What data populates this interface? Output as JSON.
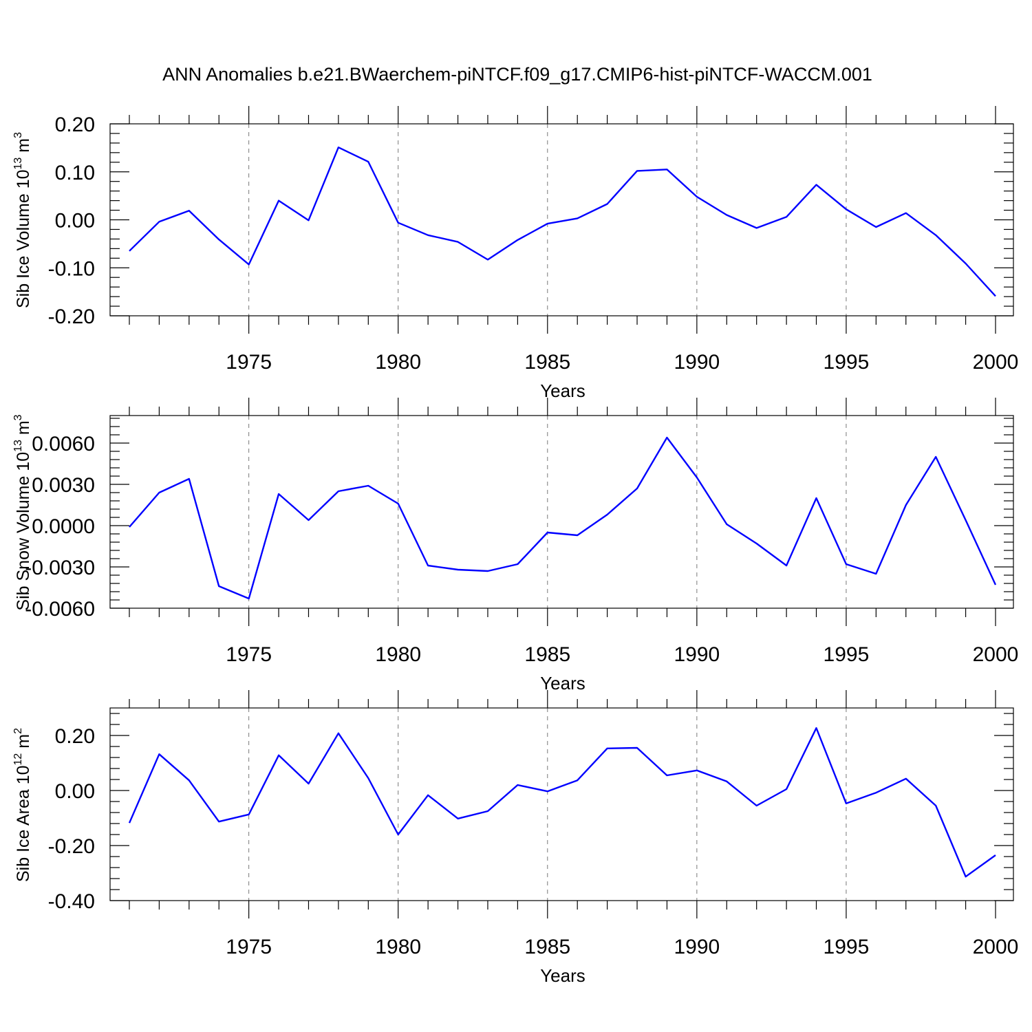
{
  "title": "ANN Anomalies b.e21.BWaerchem-piNTCF.f09_g17.CMIP6-hist-piNTCF-WACCM.001",
  "colors": {
    "line": "#0000ff",
    "grid": "#777777",
    "axis": "#000000"
  },
  "chart_data": [
    {
      "type": "line",
      "ylabel": {
        "base": "Sib Ice Volume 10",
        "exp": "13",
        "unit": " m",
        "unit_exp": "3"
      },
      "xlabel": "Years",
      "xlim": [
        1971,
        2000
      ],
      "ylim": [
        -0.2,
        0.2
      ],
      "yticks": [
        -0.2,
        -0.1,
        0.0,
        0.1,
        0.2
      ],
      "ytick_labels": [
        "-0.20",
        "-0.10",
        "0.00",
        "0.10",
        "0.20"
      ],
      "xticks": [
        1975,
        1980,
        1985,
        1990,
        1995,
        2000
      ],
      "xtick_labels": [
        "1975",
        "1980",
        "1985",
        "1990",
        "1995",
        "2000"
      ],
      "grid": "vertical dashed at 1975, 1980, 1985, 1990, 1995",
      "series": [
        {
          "x": [
            1971,
            1972,
            1973,
            1974,
            1975,
            1976,
            1977,
            1978,
            1979,
            1980,
            1981,
            1982,
            1983,
            1984,
            1985,
            1986,
            1987,
            1988,
            1989,
            1990,
            1991,
            1992,
            1993,
            1994,
            1995,
            1996,
            1997,
            1998,
            1999,
            2000
          ],
          "values": [
            -0.065,
            -0.004,
            0.019,
            -0.041,
            -0.093,
            0.04,
            -0.001,
            0.151,
            0.121,
            -0.006,
            -0.032,
            -0.046,
            -0.083,
            -0.042,
            -0.008,
            0.003,
            0.033,
            0.102,
            0.105,
            0.048,
            0.01,
            -0.017,
            0.006,
            0.073,
            0.022,
            -0.015,
            0.014,
            -0.032,
            -0.091,
            -0.159
          ]
        }
      ]
    },
    {
      "type": "line",
      "ylabel": {
        "base": "Sib Snow Volume 10",
        "exp": "13",
        "unit": " m",
        "unit_exp": "3"
      },
      "xlabel": "Years",
      "xlim": [
        1971,
        2000
      ],
      "ylim": [
        -0.006,
        0.008
      ],
      "yticks": [
        -0.006,
        -0.003,
        0.0,
        0.003,
        0.006
      ],
      "ytick_labels": [
        "-0.0060",
        "-0.0030",
        "0.0000",
        "0.0030",
        "0.0060"
      ],
      "xticks": [
        1975,
        1980,
        1985,
        1990,
        1995,
        2000
      ],
      "xtick_labels": [
        "1975",
        "1980",
        "1985",
        "1990",
        "1995",
        "2000"
      ],
      "grid": "vertical dashed at 1975, 1980, 1985, 1990, 1995",
      "series": [
        {
          "x": [
            1971,
            1972,
            1973,
            1974,
            1975,
            1976,
            1977,
            1978,
            1979,
            1980,
            1981,
            1982,
            1983,
            1984,
            1985,
            1986,
            1987,
            1988,
            1989,
            1990,
            1991,
            1992,
            1993,
            1994,
            1995,
            1996,
            1997,
            1998,
            1999,
            2000
          ],
          "values": [
            -0.0001,
            0.0024,
            0.0034,
            -0.0044,
            -0.0053,
            0.0023,
            0.0004,
            0.0025,
            0.0029,
            0.0016,
            -0.0029,
            -0.0032,
            -0.0033,
            -0.0028,
            -0.0005,
            -0.0007,
            0.0008,
            0.0027,
            0.0064,
            0.0035,
            0.0001,
            -0.0013,
            -0.0029,
            0.002,
            -0.0028,
            -0.0035,
            0.0015,
            0.005,
            0.0004,
            -0.0043
          ]
        }
      ]
    },
    {
      "type": "line",
      "ylabel": {
        "base": "Sib Ice Area 10",
        "exp": "12",
        "unit": " m",
        "unit_exp": "2"
      },
      "xlabel": "Years",
      "xlim": [
        1971,
        2000
      ],
      "ylim": [
        -0.4,
        0.3
      ],
      "yticks": [
        -0.4,
        -0.2,
        0.0,
        0.2
      ],
      "ytick_labels": [
        "-0.40",
        "-0.20",
        "0.00",
        "0.20"
      ],
      "xticks": [
        1975,
        1980,
        1985,
        1990,
        1995,
        2000
      ],
      "xtick_labels": [
        "1975",
        "1980",
        "1985",
        "1990",
        "1995",
        "2000"
      ],
      "grid": "vertical dashed at 1975, 1980, 1985, 1990, 1995",
      "series": [
        {
          "x": [
            1971,
            1972,
            1973,
            1974,
            1975,
            1976,
            1977,
            1978,
            1979,
            1980,
            1981,
            1982,
            1983,
            1984,
            1985,
            1986,
            1987,
            1988,
            1989,
            1990,
            1991,
            1992,
            1993,
            1994,
            1995,
            1996,
            1997,
            1998,
            1999,
            2000
          ],
          "values": [
            -0.118,
            0.132,
            0.037,
            -0.113,
            -0.087,
            0.128,
            0.025,
            0.208,
            0.045,
            -0.16,
            -0.017,
            -0.102,
            -0.075,
            0.02,
            -0.003,
            0.037,
            0.153,
            0.155,
            0.055,
            0.073,
            0.033,
            -0.055,
            0.005,
            0.227,
            -0.047,
            -0.008,
            0.043,
            -0.055,
            -0.313,
            -0.235
          ]
        }
      ]
    }
  ]
}
